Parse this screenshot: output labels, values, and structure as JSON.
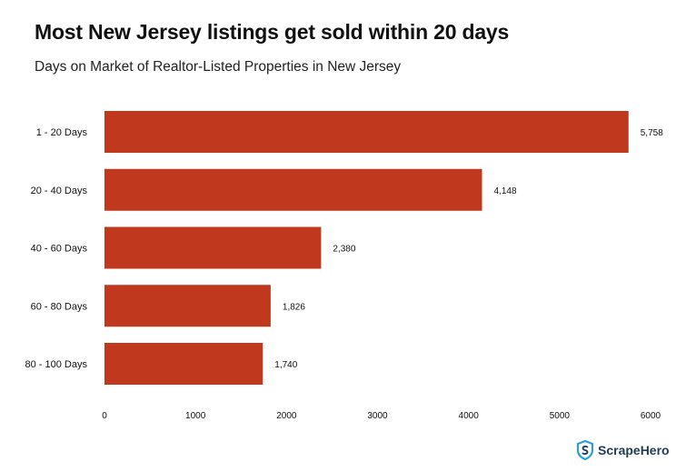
{
  "title": "Most New Jersey listings get sold within 20 days",
  "subtitle": "Days on Market of Realtor-Listed Properties in New Jersey",
  "brand": "ScrapeHero",
  "colors": {
    "bar": "#c0391e",
    "text": "#111111",
    "brand": "#1f3a5a",
    "logo_accent": "#2a9fd8"
  },
  "chart_data": {
    "type": "bar",
    "orientation": "horizontal",
    "categories": [
      "1 - 20 Days",
      "20 - 40 Days",
      "40 - 60 Days",
      "60 - 80 Days",
      "80 - 100 Days"
    ],
    "values": [
      5758,
      4148,
      2380,
      1826,
      1740
    ],
    "value_labels": [
      "5,758",
      "4,148",
      "2,380",
      "1,826",
      "1,740"
    ],
    "xlim": [
      0,
      6000
    ],
    "xticks": [
      0,
      1000,
      2000,
      3000,
      4000,
      5000,
      6000
    ],
    "grid": false,
    "legend": "none"
  }
}
